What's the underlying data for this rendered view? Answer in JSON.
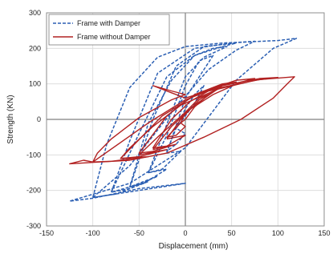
{
  "chart_data": {
    "type": "line",
    "title": "",
    "xlabel": "Displacement (mm)",
    "ylabel": "Strength (KN)",
    "xlim": [
      -150,
      150
    ],
    "ylim": [
      -300,
      300
    ],
    "xticks": [
      -150,
      -100,
      -50,
      0,
      50,
      100,
      150
    ],
    "yticks": [
      300,
      200,
      100,
      0,
      -100,
      -200,
      -300
    ],
    "grid": true,
    "legend_position": "top-left",
    "series": [
      {
        "name": "Frame with Damper",
        "color": "#2b5fb3",
        "style": "dashed",
        "loops": [
          [
            [
              -10,
              -25
            ],
            [
              0,
              10
            ],
            [
              10,
              45
            ],
            [
              20,
              95
            ],
            [
              10,
              70
            ],
            [
              0,
              30
            ],
            [
              -10,
              -25
            ],
            [
              -20,
              -90
            ],
            [
              -10,
              -70
            ],
            [
              0,
              -40
            ],
            [
              -10,
              -25
            ]
          ],
          [
            [
              -20,
              -95
            ],
            [
              0,
              60
            ],
            [
              20,
              140
            ],
            [
              30,
              180
            ],
            [
              15,
              165
            ],
            [
              0,
              95
            ],
            [
              -20,
              -45
            ],
            [
              -40,
              -150
            ],
            [
              -25,
              -140
            ],
            [
              -5,
              -90
            ],
            [
              -20,
              -95
            ]
          ],
          [
            [
              -40,
              -150
            ],
            [
              -15,
              20
            ],
            [
              0,
              120
            ],
            [
              20,
              175
            ],
            [
              45,
              205
            ],
            [
              30,
              200
            ],
            [
              10,
              180
            ],
            [
              -15,
              110
            ],
            [
              -40,
              -10
            ],
            [
              -60,
              -190
            ],
            [
              -45,
              -180
            ],
            [
              -20,
              -140
            ],
            [
              -40,
              -150
            ]
          ],
          [
            [
              -60,
              -190
            ],
            [
              -35,
              0
            ],
            [
              -10,
              150
            ],
            [
              20,
              205
            ],
            [
              55,
              215
            ],
            [
              40,
              205
            ],
            [
              10,
              180
            ],
            [
              -20,
              120
            ],
            [
              -50,
              -40
            ],
            [
              -80,
              -205
            ],
            [
              -60,
              -195
            ],
            [
              -30,
              -160
            ],
            [
              -60,
              -190
            ]
          ],
          [
            [
              -80,
              -205
            ],
            [
              -60,
              -60
            ],
            [
              -30,
              130
            ],
            [
              10,
              200
            ],
            [
              50,
              215
            ],
            [
              75,
              220
            ],
            [
              55,
              195
            ],
            [
              25,
              140
            ],
            [
              -15,
              20
            ],
            [
              -60,
              -130
            ],
            [
              -100,
              -220
            ],
            [
              -75,
              -210
            ],
            [
              -40,
              -175
            ],
            [
              -80,
              -205
            ]
          ],
          [
            [
              -100,
              -220
            ],
            [
              -85,
              -70
            ],
            [
              -60,
              90
            ],
            [
              -30,
              175
            ],
            [
              0,
              205
            ],
            [
              40,
              215
            ],
            [
              100,
              222
            ],
            [
              120,
              228
            ],
            [
              95,
              200
            ],
            [
              55,
              110
            ],
            [
              0,
              -80
            ],
            [
              -60,
              -180
            ],
            [
              -125,
              -230
            ],
            [
              -100,
              -222
            ],
            [
              -50,
              -195
            ],
            [
              0,
              -180
            ],
            [
              -100,
              -220
            ]
          ]
        ]
      },
      {
        "name": "Frame without Damper",
        "color": "#b22222",
        "style": "solid",
        "loops": [
          [
            [
              -5,
              -10
            ],
            [
              0,
              0
            ],
            [
              10,
              35
            ],
            [
              25,
              70
            ],
            [
              15,
              60
            ],
            [
              0,
              20
            ],
            [
              -5,
              -10
            ],
            [
              -20,
              -50
            ],
            [
              -10,
              -45
            ],
            [
              0,
              -20
            ],
            [
              -5,
              -10
            ]
          ],
          [
            [
              -20,
              -55
            ],
            [
              -5,
              0
            ],
            [
              15,
              55
            ],
            [
              35,
              85
            ],
            [
              25,
              80
            ],
            [
              5,
              50
            ],
            [
              -15,
              0
            ],
            [
              -35,
              -80
            ],
            [
              -20,
              -75
            ],
            [
              0,
              -45
            ],
            [
              -20,
              -55
            ]
          ],
          [
            [
              -35,
              -85
            ],
            [
              -15,
              -20
            ],
            [
              10,
              40
            ],
            [
              40,
              95
            ],
            [
              55,
              105
            ],
            [
              40,
              100
            ],
            [
              10,
              70
            ],
            [
              -20,
              10
            ],
            [
              -50,
              -95
            ],
            [
              -35,
              -90
            ],
            [
              -10,
              -70
            ],
            [
              -35,
              -85
            ]
          ],
          [
            [
              -50,
              -100
            ],
            [
              -30,
              -50
            ],
            [
              0,
              20
            ],
            [
              30,
              70
            ],
            [
              60,
              105
            ],
            [
              75,
              115
            ],
            [
              55,
              110
            ],
            [
              15,
              75
            ],
            [
              -25,
              10
            ],
            [
              -70,
              -110
            ],
            [
              -50,
              -105
            ],
            [
              -20,
              -85
            ],
            [
              -50,
              -100
            ]
          ],
          [
            [
              -70,
              -110
            ],
            [
              -60,
              -80
            ],
            [
              -35,
              -20
            ],
            [
              -5,
              40
            ],
            [
              35,
              85
            ],
            [
              75,
              110
            ],
            [
              100,
              118
            ],
            [
              80,
              115
            ],
            [
              40,
              95
            ],
            [
              0,
              55
            ],
            [
              -40,
              -10
            ],
            [
              -100,
              -120
            ],
            [
              -80,
              -118
            ],
            [
              -40,
              -105
            ],
            [
              -70,
              -110
            ]
          ],
          [
            [
              -100,
              -120
            ],
            [
              -95,
              -95
            ],
            [
              -80,
              -55
            ],
            [
              -50,
              5
            ],
            [
              -15,
              55
            ],
            [
              0,
              70
            ],
            [
              -15,
              80
            ],
            [
              -35,
              95
            ],
            [
              -15,
              75
            ],
            [
              0,
              60
            ],
            [
              30,
              85
            ],
            [
              80,
              112
            ],
            [
              118,
              120
            ],
            [
              110,
              100
            ],
            [
              95,
              60
            ],
            [
              60,
              0
            ],
            [
              20,
              -50
            ],
            [
              -20,
              -95
            ],
            [
              -60,
              -115
            ],
            [
              -125,
              -125
            ],
            [
              -110,
              -115
            ],
            [
              -100,
              -120
            ]
          ]
        ]
      }
    ]
  }
}
